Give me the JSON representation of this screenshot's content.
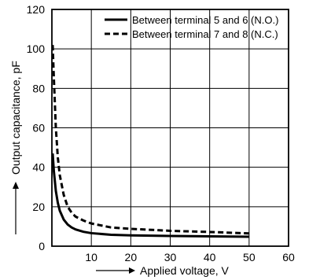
{
  "chart_data": {
    "type": "line",
    "xlabel": "Applied voltage, V",
    "ylabel": "Output capacitance, pF",
    "xlim": [
      0,
      60
    ],
    "ylim": [
      0,
      120
    ],
    "x_ticks": [
      "10",
      "20",
      "30",
      "40",
      "50",
      "60"
    ],
    "y_ticks": [
      "0",
      "20",
      "40",
      "60",
      "80",
      "100",
      "120"
    ],
    "grid": true,
    "legend_position": "top-right",
    "series": [
      {
        "name": "Between terminal 5 and 6 (N.O.)",
        "style": "solid",
        "x": [
          0.2,
          0.5,
          1,
          1.5,
          2,
          3,
          4,
          5,
          6,
          8,
          10,
          15,
          20,
          30,
          40,
          50
        ],
        "y": [
          47,
          38,
          28,
          22,
          18,
          13.5,
          11,
          9.5,
          8.5,
          7.3,
          6.6,
          5.8,
          5.5,
          5.2,
          5.0,
          4.8
        ]
      },
      {
        "name": "Between terminal 7 and 8 (N.C.)",
        "style": "dashed",
        "x": [
          0.2,
          0.5,
          1,
          1.5,
          2,
          3,
          4,
          5,
          6,
          8,
          10,
          15,
          20,
          30,
          40,
          50
        ],
        "y": [
          102,
          85,
          60,
          45,
          36,
          26,
          20,
          17,
          15,
          13,
          11.5,
          9.5,
          8.8,
          7.8,
          7.2,
          6.5
        ]
      }
    ]
  }
}
